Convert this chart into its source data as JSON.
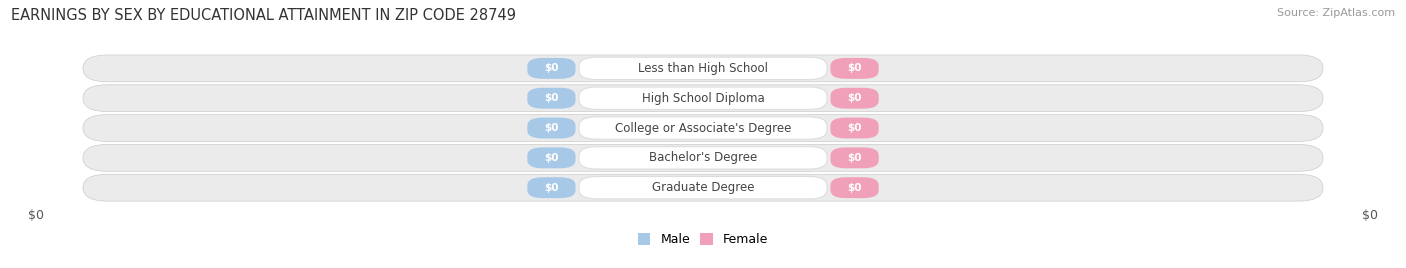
{
  "title": "EARNINGS BY SEX BY EDUCATIONAL ATTAINMENT IN ZIP CODE 28749",
  "source": "Source: ZipAtlas.com",
  "categories": [
    "Less than High School",
    "High School Diploma",
    "College or Associate's Degree",
    "Bachelor's Degree",
    "Graduate Degree"
  ],
  "male_values": [
    0,
    0,
    0,
    0,
    0
  ],
  "female_values": [
    0,
    0,
    0,
    0,
    0
  ],
  "male_color": "#a8c8e8",
  "female_color": "#f0a0b8",
  "row_bg_color": "#e8e8e8",
  "row_bg_alt": "#e0e0e0",
  "title_color": "#333333",
  "source_color": "#999999",
  "label_color": "#444444",
  "value_label_color": "#ffffff",
  "figsize": [
    14.06,
    2.68
  ],
  "dpi": 100,
  "background_color": "#ffffff",
  "axis_label_left": "$0",
  "axis_label_right": "$0",
  "legend_male": "Male",
  "legend_female": "Female",
  "title_fontsize": 10.5,
  "category_fontsize": 8.5,
  "value_fontsize": 7.5,
  "source_fontsize": 8
}
